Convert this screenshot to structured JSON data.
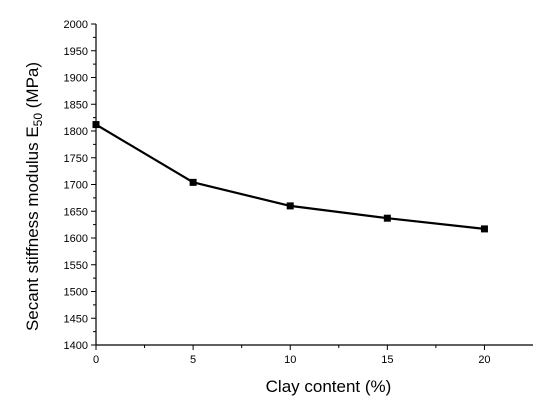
{
  "chart_data": {
    "type": "line",
    "title": "",
    "xlabel": "Clay content (%)",
    "ylabel": {
      "prefix": "Secant  stiffness modulus E",
      "subscript": "50",
      "suffix": " (MPa)"
    },
    "xlim": [
      0,
      22.5
    ],
    "ylim": [
      1400,
      2000
    ],
    "xticks": [
      "0",
      "5",
      "10",
      "15",
      "20"
    ],
    "yticks": [
      "1400",
      "1450",
      "1500",
      "1550",
      "1600",
      "1650",
      "1700",
      "1750",
      "1800",
      "1850",
      "1900",
      "1950",
      "2000"
    ],
    "grid": false,
    "marker": "square",
    "series": [
      {
        "x": [
          0,
          5,
          10,
          15,
          20
        ],
        "values": [
          1812,
          1704,
          1660,
          1637,
          1617
        ]
      }
    ]
  }
}
